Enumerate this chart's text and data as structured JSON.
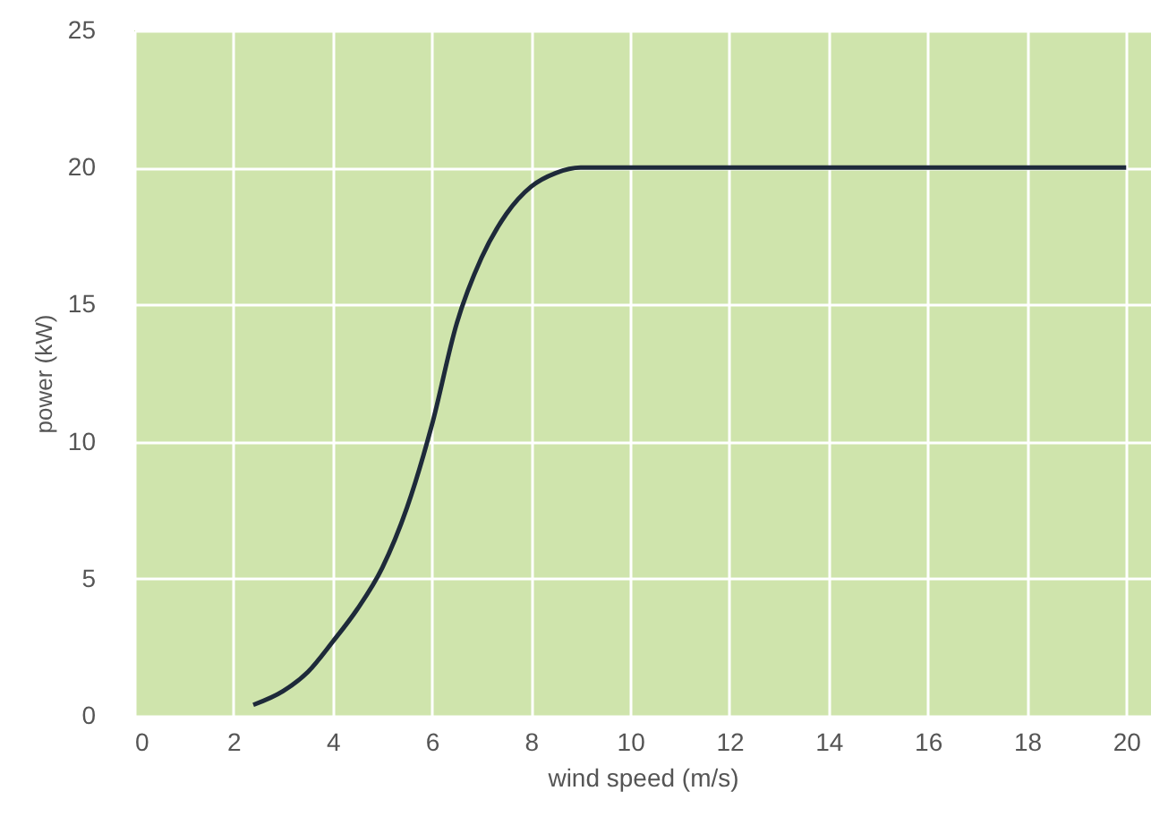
{
  "chart_data": {
    "type": "line",
    "xlabel": "wind speed (m/s)",
    "ylabel": "power (kW)",
    "x": [
      2.4,
      3,
      3.5,
      4,
      4.5,
      5,
      5.5,
      6,
      6.5,
      7,
      7.5,
      8,
      8.5,
      9,
      9.5,
      20
    ],
    "series": [
      {
        "color": "#1e2a3a",
        "values": [
          0.4,
          0.9,
          1.6,
          2.7,
          3.9,
          5.4,
          7.6,
          10.6,
          14.3,
          16.7,
          18.3,
          19.3,
          19.8,
          20,
          20,
          20
        ]
      }
    ],
    "xlim": [
      0,
      20.5
    ],
    "xticks": [
      0,
      2,
      4,
      6,
      8,
      10,
      12,
      14,
      16,
      18,
      20
    ],
    "ylim": [
      0,
      25
    ],
    "yticks": [
      0,
      5,
      10,
      15,
      20,
      25
    ],
    "grid": true,
    "marker": "none",
    "line_style": "solid"
  }
}
